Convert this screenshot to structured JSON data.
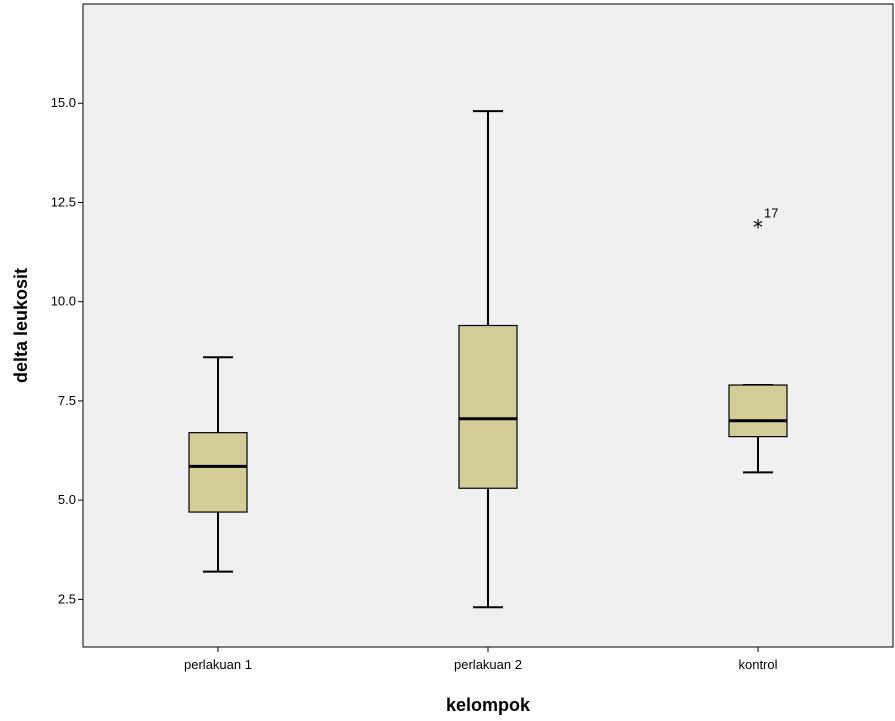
{
  "chart_data": {
    "type": "boxplot",
    "xlabel": "kelompok",
    "ylabel": "delta leukosit",
    "ylim": [
      1.3,
      17.5
    ],
    "yticks": [
      2.5,
      5.0,
      7.5,
      10.0,
      12.5,
      15.0
    ],
    "ytick_labels": [
      "2.5",
      "5.0",
      "7.5",
      "10.0",
      "12.5",
      "15.0"
    ],
    "categories": [
      "perlakuan 1",
      "perlakuan 2",
      "kontrol"
    ],
    "boxes": [
      {
        "category": "perlakuan 1",
        "whisker_low": 3.2,
        "q1": 4.7,
        "median": 5.85,
        "q3": 6.7,
        "whisker_high": 8.6,
        "outliers": []
      },
      {
        "category": "perlakuan 2",
        "whisker_low": 2.3,
        "q1": 5.3,
        "median": 7.05,
        "q3": 9.4,
        "whisker_high": 14.8,
        "outliers": []
      },
      {
        "category": "kontrol",
        "whisker_low": 5.7,
        "q1": 6.6,
        "median": 7.0,
        "q3": 7.9,
        "whisker_high": 7.9,
        "outliers": [
          {
            "value": 11.9,
            "label": "17"
          }
        ]
      }
    ],
    "grid": false,
    "colors": {
      "plot_background": "#f0f0f0",
      "box_fill": "#d3ce98",
      "stroke": "#000000"
    }
  }
}
